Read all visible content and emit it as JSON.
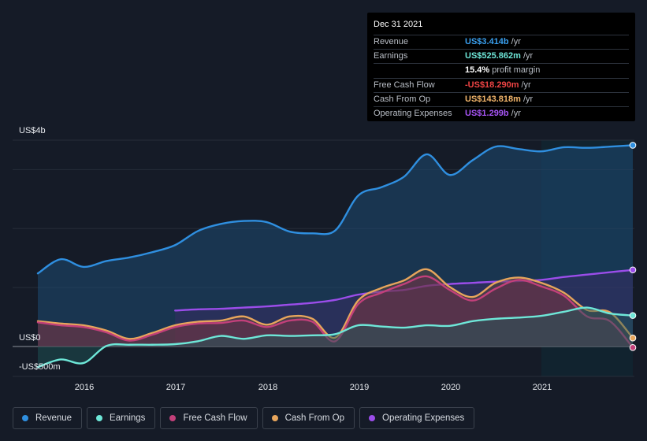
{
  "tooltip": {
    "date": "Dec 31 2021",
    "rows": [
      {
        "label": "Revenue",
        "value": "US$3.414b",
        "unit": "/yr",
        "color": "#3aa0f0"
      },
      {
        "label": "Earnings",
        "value": "US$525.862m",
        "unit": "/yr",
        "color": "#6ee7d8"
      },
      {
        "label": "",
        "value": "15.4%",
        "unit": "profit margin",
        "color": "#ffffff"
      },
      {
        "label": "Free Cash Flow",
        "value": "-US$18.290m",
        "unit": "/yr",
        "color": "#ef4444"
      },
      {
        "label": "Cash From Op",
        "value": "US$143.818m",
        "unit": "/yr",
        "color": "#f2b56b"
      },
      {
        "label": "Operating Expenses",
        "value": "US$1.299b",
        "unit": "/yr",
        "color": "#a855f7"
      }
    ]
  },
  "legend": [
    {
      "name": "Revenue",
      "color": "#2f8fe0"
    },
    {
      "name": "Earnings",
      "color": "#6ee7d8"
    },
    {
      "name": "Free Cash Flow",
      "color": "#c2407a"
    },
    {
      "name": "Cash From Op",
      "color": "#e7a55c"
    },
    {
      "name": "Operating Expenses",
      "color": "#9b4dea"
    }
  ],
  "chart_data": {
    "type": "line",
    "title": "",
    "ylabel": "",
    "y_tick_labels": [
      "US$4b",
      "US$0",
      "-US$500m"
    ],
    "x_tick_labels": [
      "2016",
      "2017",
      "2018",
      "2019",
      "2020",
      "2021"
    ],
    "xlim": [
      2015.5,
      2022.0
    ],
    "ylim": [
      -500,
      3500
    ],
    "forecast_start": 2021.0,
    "series": [
      {
        "name": "Revenue",
        "color": "#2f8fe0",
        "x": [
          2015.5,
          2015.75,
          2016.0,
          2016.25,
          2016.5,
          2016.75,
          2017.0,
          2017.25,
          2017.5,
          2017.75,
          2018.0,
          2018.25,
          2018.5,
          2018.75,
          2019.0,
          2019.25,
          2019.5,
          2019.75,
          2020.0,
          2020.25,
          2020.5,
          2020.75,
          2021.0,
          2021.25,
          2021.5,
          2021.75,
          2022.0
        ],
        "values": [
          1240,
          1480,
          1350,
          1450,
          1510,
          1600,
          1720,
          1960,
          2080,
          2130,
          2110,
          1950,
          1920,
          1970,
          2560,
          2700,
          2880,
          3260,
          2910,
          3160,
          3390,
          3350,
          3310,
          3380,
          3370,
          3390,
          3414
        ]
      },
      {
        "name": "Earnings",
        "color": "#6ee7d8",
        "x": [
          2015.5,
          2015.75,
          2016.0,
          2016.25,
          2016.5,
          2016.75,
          2017.0,
          2017.25,
          2017.5,
          2017.75,
          2018.0,
          2018.25,
          2018.5,
          2018.75,
          2019.0,
          2019.25,
          2019.5,
          2019.75,
          2020.0,
          2020.25,
          2020.5,
          2020.75,
          2021.0,
          2021.25,
          2021.5,
          2021.75,
          2022.0
        ],
        "values": [
          -350,
          -220,
          -280,
          10,
          30,
          30,
          40,
          90,
          180,
          130,
          190,
          180,
          190,
          210,
          360,
          340,
          320,
          360,
          350,
          430,
          470,
          490,
          520,
          590,
          660,
          560,
          526
        ]
      },
      {
        "name": "Free Cash Flow",
        "color": "#c2407a",
        "x": [
          2015.5,
          2015.75,
          2016.0,
          2016.25,
          2016.5,
          2016.75,
          2017.0,
          2017.25,
          2017.5,
          2017.75,
          2018.0,
          2018.25,
          2018.5,
          2018.75,
          2019.0,
          2019.25,
          2019.5,
          2019.75,
          2020.0,
          2020.25,
          2020.5,
          2020.75,
          2021.0,
          2021.25,
          2021.5,
          2021.75,
          2022.0
        ],
        "values": [
          410,
          360,
          330,
          240,
          100,
          200,
          330,
          390,
          400,
          440,
          330,
          440,
          420,
          90,
          720,
          910,
          1060,
          1190,
          960,
          780,
          980,
          1130,
          1020,
          860,
          510,
          430,
          -18
        ]
      },
      {
        "name": "Cash From Op",
        "color": "#e7a55c",
        "x": [
          2015.5,
          2015.75,
          2016.0,
          2016.25,
          2016.5,
          2016.75,
          2017.0,
          2017.25,
          2017.5,
          2017.75,
          2018.0,
          2018.25,
          2018.5,
          2018.75,
          2019.0,
          2019.25,
          2019.5,
          2019.75,
          2020.0,
          2020.25,
          2020.5,
          2020.75,
          2021.0,
          2021.25,
          2021.5,
          2021.75,
          2022.0
        ],
        "values": [
          430,
          390,
          360,
          270,
          130,
          230,
          360,
          420,
          440,
          510,
          370,
          510,
          470,
          150,
          780,
          990,
          1120,
          1310,
          1010,
          840,
          1080,
          1170,
          1080,
          910,
          620,
          580,
          144
        ]
      },
      {
        "name": "Operating Expenses",
        "color": "#9b4dea",
        "x": [
          2017.0,
          2017.25,
          2017.5,
          2017.75,
          2018.0,
          2018.25,
          2018.5,
          2018.75,
          2019.0,
          2019.25,
          2019.5,
          2019.75,
          2020.0,
          2020.25,
          2020.5,
          2020.75,
          2021.0,
          2021.25,
          2021.5,
          2021.75,
          2022.0
        ],
        "values": [
          610,
          630,
          640,
          660,
          680,
          710,
          740,
          790,
          880,
          930,
          960,
          1030,
          1060,
          1080,
          1100,
          1110,
          1130,
          1180,
          1220,
          1260,
          1299
        ]
      }
    ]
  }
}
